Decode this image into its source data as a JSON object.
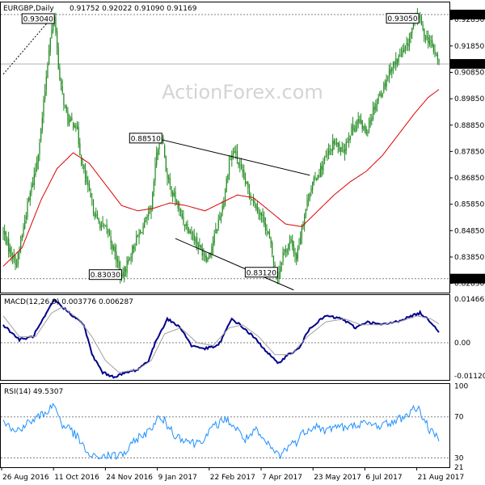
{
  "header": {
    "symbol": "EURGBP,Daily",
    "ohlc": "0.91752 0.92022 0.91090 0.91169"
  },
  "watermark": "ActionForex.com",
  "colors": {
    "candle": "#228b22",
    "sma": "#dd0000",
    "trend": "#000000",
    "macd": "#00008b",
    "signal": "#a0a0a0",
    "rsi": "#1e90ff",
    "dotted": "#808080",
    "frame": "#000000"
  },
  "chart_data": [
    {
      "type": "candlestick",
      "title": "EURGBP,Daily 0.91752 0.92022 0.91090 0.91169",
      "ylim": [
        0.825,
        0.935
      ],
      "yticks": [
        "0.92850",
        "0.91850",
        "0.90850",
        "0.89850",
        "0.88850",
        "0.87850",
        "0.86850",
        "0.85850",
        "0.84850",
        "0.83850",
        "0.82850"
      ],
      "last_price": "0.91169",
      "x_labels": [
        "26 Aug 2016",
        "11 Oct 2016",
        "24 Nov 2016",
        "9 Jan 2017",
        "22 Feb 2017",
        "7 Apr 2017",
        "23 May 2017",
        "6 Jul 2017",
        "21 Aug 2017"
      ],
      "price_anchors": [
        [
          0,
          0.848
        ],
        [
          4,
          0.842
        ],
        [
          10,
          0.836
        ],
        [
          18,
          0.858
        ],
        [
          24,
          0.872
        ],
        [
          28,
          0.886
        ],
        [
          34,
          0.918
        ],
        [
          38,
          0.9304
        ],
        [
          42,
          0.905
        ],
        [
          48,
          0.89
        ],
        [
          54,
          0.889
        ],
        [
          58,
          0.875
        ],
        [
          64,
          0.862
        ],
        [
          70,
          0.852
        ],
        [
          78,
          0.848
        ],
        [
          84,
          0.838
        ],
        [
          88,
          0.8303
        ],
        [
          92,
          0.836
        ],
        [
          98,
          0.844
        ],
        [
          104,
          0.85
        ],
        [
          110,
          0.856
        ],
        [
          114,
          0.878
        ],
        [
          118,
          0.8851
        ],
        [
          122,
          0.868
        ],
        [
          128,
          0.86
        ],
        [
          134,
          0.852
        ],
        [
          140,
          0.848
        ],
        [
          146,
          0.842
        ],
        [
          152,
          0.838
        ],
        [
          158,
          0.848
        ],
        [
          164,
          0.86
        ],
        [
          168,
          0.875
        ],
        [
          172,
          0.879
        ],
        [
          176,
          0.872
        ],
        [
          182,
          0.864
        ],
        [
          188,
          0.858
        ],
        [
          194,
          0.852
        ],
        [
          198,
          0.845
        ],
        [
          202,
          0.834
        ],
        [
          204,
          0.8312
        ],
        [
          208,
          0.84
        ],
        [
          214,
          0.844
        ],
        [
          218,
          0.838
        ],
        [
          222,
          0.85
        ],
        [
          228,
          0.864
        ],
        [
          234,
          0.87
        ],
        [
          240,
          0.876
        ],
        [
          246,
          0.882
        ],
        [
          252,
          0.878
        ],
        [
          258,
          0.886
        ],
        [
          264,
          0.89
        ],
        [
          270,
          0.886
        ],
        [
          276,
          0.896
        ],
        [
          282,
          0.902
        ],
        [
          288,
          0.91
        ],
        [
          294,
          0.914
        ],
        [
          300,
          0.918
        ],
        [
          306,
          0.9285
        ],
        [
          309,
          0.9305
        ],
        [
          312,
          0.924
        ],
        [
          316,
          0.921
        ],
        [
          320,
          0.917
        ],
        [
          324,
          0.9117
        ]
      ],
      "sma_anchors": [
        [
          0,
          0.835
        ],
        [
          14,
          0.842
        ],
        [
          28,
          0.86
        ],
        [
          40,
          0.872
        ],
        [
          52,
          0.878
        ],
        [
          64,
          0.874
        ],
        [
          76,
          0.866
        ],
        [
          88,
          0.858
        ],
        [
          100,
          0.856
        ],
        [
          112,
          0.857
        ],
        [
          124,
          0.859
        ],
        [
          136,
          0.858
        ],
        [
          150,
          0.856
        ],
        [
          162,
          0.859
        ],
        [
          174,
          0.862
        ],
        [
          186,
          0.861
        ],
        [
          198,
          0.856
        ],
        [
          210,
          0.851
        ],
        [
          222,
          0.85
        ],
        [
          234,
          0.856
        ],
        [
          246,
          0.862
        ],
        [
          258,
          0.867
        ],
        [
          270,
          0.871
        ],
        [
          282,
          0.877
        ],
        [
          294,
          0.885
        ],
        [
          306,
          0.893
        ],
        [
          316,
          0.899
        ],
        [
          324,
          0.902
        ]
      ],
      "annotations": [
        {
          "label": "0.93040",
          "date_index": 38,
          "value": 0.9304,
          "kind": "high"
        },
        {
          "label": "0.88510",
          "date_index": 118,
          "value": 0.8851,
          "kind": "high"
        },
        {
          "label": "0.93050",
          "date_index": 309,
          "value": 0.9305,
          "kind": "high"
        },
        {
          "label": "0.83030",
          "date_index": 88,
          "value": 0.8303,
          "kind": "low"
        },
        {
          "label": "0.83120",
          "date_index": 204,
          "value": 0.8312,
          "kind": "low"
        }
      ],
      "hlines": [
        {
          "label": "0.93040",
          "value": 0.9304
        },
        {
          "label": "0.83030",
          "value": 0.8303
        }
      ],
      "trendlines": [
        {
          "from": [
            97,
            0.8855
          ],
          "to": [
            228,
            0.8695
          ]
        },
        {
          "from": [
            128,
            0.8455
          ],
          "to": [
            216,
            0.826
          ]
        },
        {
          "from": [
            0,
            0.9078
          ],
          "to": [
            38,
            0.9304
          ],
          "style": "dotted"
        }
      ]
    },
    {
      "type": "line",
      "title": "MACD(12,26,9) 0.003776 0.006287",
      "ylim": [
        -0.0125,
        0.016
      ],
      "yticks": [
        "0.014661",
        "0.00",
        "-0.011202"
      ],
      "series": [
        {
          "name": "MACD",
          "anchors": [
            [
              0,
              0.006
            ],
            [
              12,
              0.001
            ],
            [
              22,
              0.002
            ],
            [
              30,
              0.008
            ],
            [
              38,
              0.0145
            ],
            [
              44,
              0.012
            ],
            [
              52,
              0.009
            ],
            [
              60,
              0.006
            ],
            [
              66,
              -0.004
            ],
            [
              74,
              -0.01
            ],
            [
              82,
              -0.0115
            ],
            [
              92,
              -0.01
            ],
            [
              100,
              -0.009
            ],
            [
              108,
              -0.006
            ],
            [
              114,
              0.001
            ],
            [
              122,
              0.008
            ],
            [
              132,
              0.005
            ],
            [
              140,
              -0.001
            ],
            [
              150,
              -0.002
            ],
            [
              160,
              -0.001
            ],
            [
              170,
              0.008
            ],
            [
              176,
              0.006
            ],
            [
              186,
              0.002
            ],
            [
              196,
              -0.003
            ],
            [
              204,
              -0.007
            ],
            [
              212,
              -0.004
            ],
            [
              220,
              -0.002
            ],
            [
              228,
              0.005
            ],
            [
              240,
              0.009
            ],
            [
              252,
              0.008
            ],
            [
              262,
              0.005
            ],
            [
              270,
              0.007
            ],
            [
              282,
              0.006
            ],
            [
              292,
              0.007
            ],
            [
              304,
              0.009
            ],
            [
              310,
              0.01
            ],
            [
              318,
              0.007
            ],
            [
              324,
              0.0038
            ]
          ]
        },
        {
          "name": "Signal",
          "anchors": [
            [
              0,
              0.009
            ],
            [
              12,
              0.002
            ],
            [
              24,
              0.002
            ],
            [
              36,
              0.01
            ],
            [
              44,
              0.012
            ],
            [
              56,
              0.008
            ],
            [
              66,
              0.002
            ],
            [
              76,
              -0.006
            ],
            [
              86,
              -0.01
            ],
            [
              100,
              -0.009
            ],
            [
              110,
              -0.006
            ],
            [
              120,
              0.003
            ],
            [
              132,
              0.005
            ],
            [
              144,
              0.0
            ],
            [
              156,
              -0.001
            ],
            [
              168,
              0.005
            ],
            [
              178,
              0.006
            ],
            [
              190,
              0.002
            ],
            [
              202,
              -0.004
            ],
            [
              214,
              -0.004
            ],
            [
              226,
              0.002
            ],
            [
              240,
              0.007
            ],
            [
              254,
              0.008
            ],
            [
              266,
              0.006
            ],
            [
              280,
              0.006
            ],
            [
              294,
              0.007
            ],
            [
              308,
              0.009
            ],
            [
              318,
              0.008
            ],
            [
              324,
              0.0063
            ]
          ]
        }
      ]
    },
    {
      "type": "line",
      "title": "RSI(14) 49.5307",
      "ylim": [
        21,
        102
      ],
      "yticks": [
        "100",
        "70",
        "30",
        "21"
      ],
      "series": [
        {
          "name": "RSI",
          "anchors": [
            [
              0,
              68
            ],
            [
              8,
              55
            ],
            [
              16,
              62
            ],
            [
              24,
              68
            ],
            [
              32,
              75
            ],
            [
              38,
              82
            ],
            [
              44,
              62
            ],
            [
              50,
              58
            ],
            [
              56,
              48
            ],
            [
              62,
              36
            ],
            [
              66,
              30
            ],
            [
              74,
              32
            ],
            [
              84,
              32
            ],
            [
              92,
              36
            ],
            [
              100,
              50
            ],
            [
              108,
              55
            ],
            [
              114,
              68
            ],
            [
              120,
              66
            ],
            [
              128,
              52
            ],
            [
              136,
              48
            ],
            [
              142,
              44
            ],
            [
              150,
              50
            ],
            [
              158,
              62
            ],
            [
              166,
              68
            ],
            [
              172,
              60
            ],
            [
              180,
              48
            ],
            [
              188,
              56
            ],
            [
              194,
              46
            ],
            [
              202,
              36
            ],
            [
              206,
              32
            ],
            [
              212,
              42
            ],
            [
              218,
              46
            ],
            [
              224,
              56
            ],
            [
              232,
              62
            ],
            [
              240,
              56
            ],
            [
              248,
              62
            ],
            [
              256,
              58
            ],
            [
              264,
              64
            ],
            [
              272,
              62
            ],
            [
              282,
              62
            ],
            [
              292,
              66
            ],
            [
              300,
              72
            ],
            [
              308,
              80
            ],
            [
              312,
              70
            ],
            [
              318,
              55
            ],
            [
              324,
              49.5
            ]
          ]
        }
      ]
    }
  ]
}
